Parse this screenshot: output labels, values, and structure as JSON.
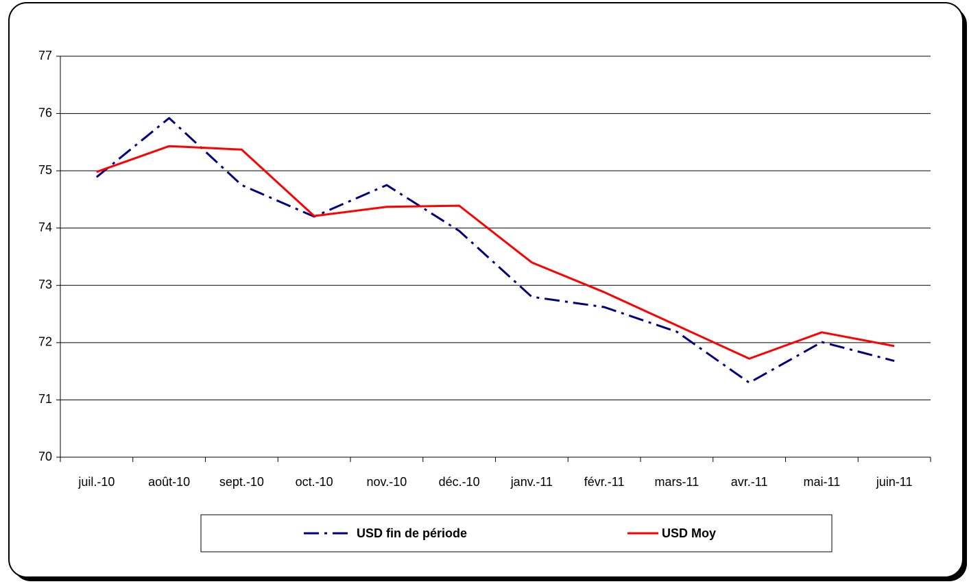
{
  "chart_data": {
    "type": "line",
    "categories": [
      "juil.-10",
      "août-10",
      "sept.-10",
      "oct.-10",
      "nov.-10",
      "déc.-10",
      "janv.-11",
      "févr.-11",
      "mars-11",
      "avr.-11",
      "mai-11",
      "juin-11"
    ],
    "series": [
      {
        "name": "USD fin de période",
        "color": "#000080",
        "dash": "dash-dot",
        "values": [
          74.89,
          75.92,
          74.75,
          74.2,
          74.75,
          73.95,
          72.8,
          72.62,
          72.19,
          71.3,
          72.01,
          71.68
        ]
      },
      {
        "name": "USD Moy",
        "color": "#ff0000",
        "dash": "solid",
        "values": [
          74.98,
          75.43,
          75.37,
          74.21,
          74.37,
          74.39,
          73.4,
          72.88,
          72.3,
          71.72,
          72.18,
          71.94
        ]
      }
    ],
    "ylim": [
      70,
      77
    ],
    "yticks": [
      70,
      71,
      72,
      73,
      74,
      75,
      76,
      77
    ],
    "grid": true,
    "legend": "bottom"
  }
}
